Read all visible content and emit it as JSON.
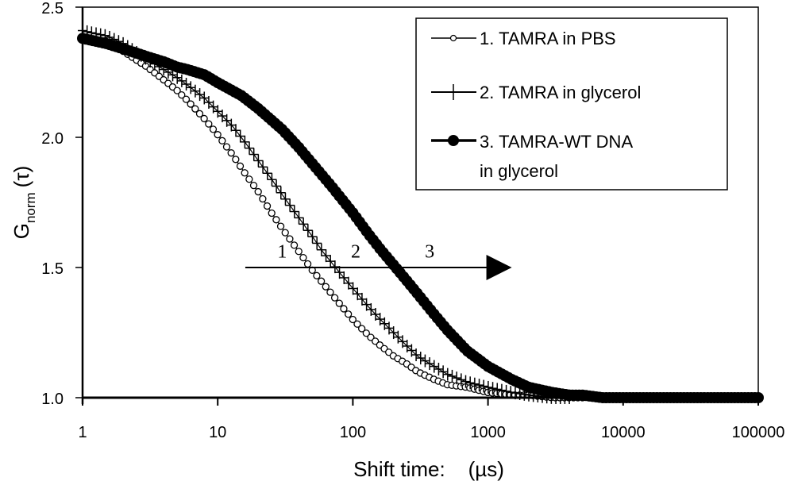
{
  "chart_data": {
    "type": "scatter",
    "title": "",
    "xlabel": "Shift time:    (µs)",
    "ylabel_main": "G",
    "ylabel_sub": "norm",
    "ylabel_arg": "(τ)",
    "xscale": "log",
    "xlim": [
      1,
      100000
    ],
    "ylim": [
      1.0,
      2.5
    ],
    "x_ticks": [
      1,
      10,
      100,
      1000,
      10000,
      100000
    ],
    "x_tick_labels": [
      "1",
      "10",
      "100",
      "1000",
      "10000",
      "100000"
    ],
    "y_ticks": [
      1.0,
      1.5,
      2.0,
      2.5
    ],
    "y_tick_labels": [
      "1.0",
      "1.5",
      "2.0",
      "2.5"
    ],
    "grid": false,
    "legend_position": "top-right",
    "legend": [
      {
        "label_line1": "1. TAMRA in PBS",
        "label_line2": "",
        "marker": "open-circle"
      },
      {
        "label_line1": "2. TAMRA in glycerol",
        "label_line2": "",
        "marker": "plus"
      },
      {
        "label_line1": "3. TAMRA-WT DNA",
        "label_line2": "in glycerol",
        "marker": "filled-circle"
      }
    ],
    "series": [
      {
        "name": "1. TAMRA in PBS",
        "marker": "open-circle",
        "x": [
          1,
          1.5,
          2,
          3,
          4,
          5,
          6,
          8,
          10,
          13,
          16,
          20,
          25,
          30,
          40,
          50,
          60,
          80,
          100,
          130,
          160,
          200,
          250,
          300,
          400,
          500,
          700,
          1000,
          1500,
          2000,
          3000,
          5000
        ],
        "y": [
          2.38,
          2.37,
          2.33,
          2.27,
          2.22,
          2.18,
          2.14,
          2.07,
          2.01,
          1.93,
          1.86,
          1.79,
          1.71,
          1.65,
          1.56,
          1.49,
          1.44,
          1.36,
          1.3,
          1.24,
          1.2,
          1.16,
          1.13,
          1.1,
          1.07,
          1.05,
          1.04,
          1.02,
          1.01,
          1.01,
          1.0,
          1.0
        ]
      },
      {
        "name": "2. TAMRA in glycerol",
        "marker": "plus",
        "x": [
          1,
          1.2,
          1.5,
          2,
          3,
          4,
          5,
          6,
          8,
          10,
          13,
          16,
          20,
          25,
          30,
          40,
          50,
          60,
          80,
          100,
          130,
          160,
          200,
          250,
          300,
          400,
          500,
          700,
          1000,
          1500,
          2000,
          3000,
          4000
        ],
        "y": [
          2.41,
          2.4,
          2.39,
          2.36,
          2.3,
          2.26,
          2.23,
          2.2,
          2.15,
          2.1,
          2.04,
          1.98,
          1.91,
          1.84,
          1.78,
          1.69,
          1.62,
          1.56,
          1.48,
          1.42,
          1.35,
          1.3,
          1.25,
          1.2,
          1.16,
          1.12,
          1.09,
          1.06,
          1.04,
          1.02,
          1.01,
          1.0,
          1.0
        ]
      },
      {
        "name": "3. TAMRA-WT DNA in glycerol",
        "marker": "filled-circle",
        "x": [
          1,
          1.5,
          2,
          3,
          4,
          5,
          6,
          8,
          10,
          15,
          20,
          30,
          40,
          50,
          70,
          100,
          130,
          160,
          200,
          250,
          300,
          400,
          500,
          700,
          1000,
          1500,
          2000,
          3000,
          4000,
          5000,
          7000,
          10000,
          20000,
          50000,
          100000
        ],
        "y": [
          2.38,
          2.36,
          2.34,
          2.31,
          2.29,
          2.27,
          2.26,
          2.24,
          2.21,
          2.16,
          2.11,
          2.03,
          1.96,
          1.9,
          1.81,
          1.71,
          1.63,
          1.57,
          1.51,
          1.45,
          1.4,
          1.32,
          1.26,
          1.18,
          1.12,
          1.07,
          1.04,
          1.02,
          1.01,
          1.01,
          1.0,
          1.0,
          1.0,
          1.0,
          1.0
        ]
      }
    ],
    "annotations": {
      "arrow": {
        "from_x": 16,
        "to_x": 1500,
        "y": 1.5
      },
      "labels": [
        {
          "text": "1",
          "x": 30,
          "y": 1.55
        },
        {
          "text": "2",
          "x": 105,
          "y": 1.55
        },
        {
          "text": "3",
          "x": 370,
          "y": 1.55
        }
      ]
    }
  }
}
